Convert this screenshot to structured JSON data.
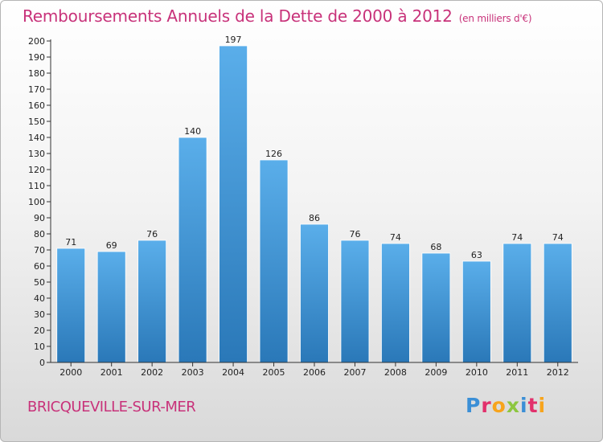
{
  "title": "Remboursements Annuels de la Dette de 2000 à 2012",
  "unit": "(en milliers d'€)",
  "commune": "BRICQUEVILLE-SUR-MER",
  "logo": {
    "letters": [
      "P",
      "r",
      "o",
      "x",
      "i",
      "t",
      "i"
    ],
    "colors": [
      "#3b8fd6",
      "#e2306c",
      "#f7a41c",
      "#8dc63f",
      "#3b8fd6",
      "#e2306c",
      "#f7a41c"
    ]
  },
  "colors": {
    "accent": "#c8327a",
    "bar_top": "#5aaeea",
    "bar_bottom": "#2a78b8"
  },
  "chart_data": {
    "type": "bar",
    "categories": [
      "2000",
      "2001",
      "2002",
      "2003",
      "2004",
      "2005",
      "2006",
      "2007",
      "2008",
      "2009",
      "2010",
      "2011",
      "2012"
    ],
    "values": [
      71,
      69,
      76,
      140,
      197,
      126,
      86,
      76,
      74,
      68,
      63,
      74,
      74
    ],
    "title": "Remboursements Annuels de la Dette de 2000 à 2012",
    "subtitle": "(en milliers d'€)",
    "ylim": [
      0,
      200
    ],
    "yticks": [
      0,
      10,
      20,
      30,
      40,
      50,
      60,
      70,
      80,
      90,
      100,
      110,
      120,
      130,
      140,
      150,
      160,
      170,
      180,
      190,
      200
    ],
    "grid": false,
    "data_labels": true
  }
}
